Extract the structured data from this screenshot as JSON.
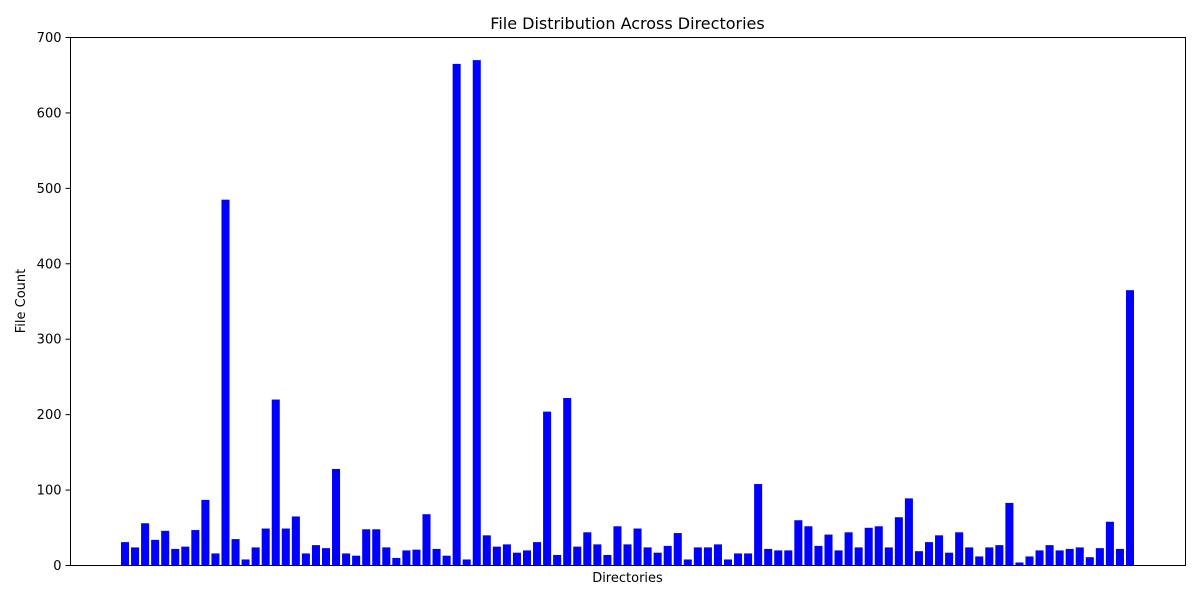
{
  "chart_data": {
    "type": "bar",
    "title": "File Distribution Across Directories",
    "xlabel": "Directories",
    "ylabel": "File Count",
    "ylim": [
      0,
      700
    ],
    "yticks": [
      0,
      100,
      200,
      300,
      400,
      500,
      600,
      700
    ],
    "bar_color": "#0000ff",
    "grid": false,
    "values": [
      31,
      24,
      56,
      34,
      46,
      22,
      25,
      47,
      87,
      16,
      485,
      35,
      8,
      24,
      49,
      220,
      49,
      65,
      16,
      27,
      23,
      128,
      16,
      13,
      48,
      48,
      24,
      10,
      20,
      21,
      68,
      22,
      13,
      665,
      8,
      670,
      40,
      25,
      28,
      17,
      20,
      31,
      204,
      14,
      222,
      25,
      44,
      28,
      14,
      52,
      28,
      49,
      24,
      17,
      26,
      43,
      8,
      24,
      24,
      28,
      8,
      16,
      16,
      108,
      22,
      20,
      20,
      60,
      52,
      26,
      41,
      20,
      44,
      24,
      50,
      52,
      24,
      64,
      89,
      19,
      31,
      40,
      17,
      44,
      24,
      12,
      24,
      27,
      83,
      4,
      12,
      20,
      27,
      20,
      22,
      24,
      11,
      23,
      58,
      22,
      365
    ]
  }
}
